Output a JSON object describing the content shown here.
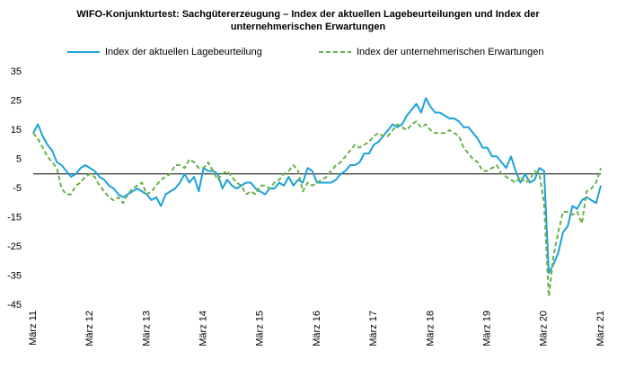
{
  "chart_data": {
    "type": "line",
    "title": "WIFO-Konjunkturtest: Sachgütererzeugung – Index der aktuellen Lagebeurteilungen und Index der",
    "subtitle": "unternehmerischen Erwartungen",
    "categories": [
      "März 11",
      null,
      null,
      null,
      null,
      null,
      null,
      null,
      null,
      null,
      null,
      null,
      "März 12",
      null,
      null,
      null,
      null,
      null,
      null,
      null,
      null,
      null,
      null,
      null,
      "März 13",
      null,
      null,
      null,
      null,
      null,
      null,
      null,
      null,
      null,
      null,
      null,
      "März 14",
      null,
      null,
      null,
      null,
      null,
      null,
      null,
      null,
      null,
      null,
      null,
      "März 15",
      null,
      null,
      null,
      null,
      null,
      null,
      null,
      null,
      null,
      null,
      null,
      "März 16",
      null,
      null,
      null,
      null,
      null,
      null,
      null,
      null,
      null,
      null,
      null,
      "März 17",
      null,
      null,
      null,
      null,
      null,
      null,
      null,
      null,
      null,
      null,
      null,
      "März 18",
      null,
      null,
      null,
      null,
      null,
      null,
      null,
      null,
      null,
      null,
      null,
      "März 19",
      null,
      null,
      null,
      null,
      null,
      null,
      null,
      null,
      null,
      null,
      null,
      "März 20",
      null,
      null,
      null,
      null,
      null,
      null,
      null,
      null,
      null,
      null,
      null,
      "März 21"
    ],
    "series": [
      {
        "name": "Index der aktuellen Lagebeurteilung",
        "color": "#1ba3d8",
        "dashed": false,
        "values": [
          14,
          17,
          13,
          10,
          8,
          4,
          3,
          1,
          -1,
          0,
          2,
          3,
          2,
          1,
          -1,
          -2,
          -4,
          -5,
          -7,
          -8,
          -7,
          -6,
          -5,
          -6,
          -7,
          -9,
          -8,
          -11,
          -7,
          -6,
          -5,
          -3,
          0,
          -3,
          -1,
          -6,
          2,
          1,
          1,
          0,
          -5,
          -2,
          -4,
          -5,
          -4,
          -3,
          -3,
          -5,
          -6,
          -7,
          -5,
          -5,
          -3,
          -4,
          -1,
          -4,
          -2,
          -3,
          2,
          1,
          -3,
          -3,
          -3,
          -3,
          -2,
          0,
          1,
          3,
          3,
          4,
          7,
          7,
          10,
          11,
          13,
          15,
          17,
          16,
          17,
          20,
          22,
          24,
          21,
          26,
          23,
          21,
          21,
          20,
          19,
          19,
          18,
          16,
          16,
          14,
          12,
          9,
          9,
          6,
          6,
          4,
          2,
          6,
          1,
          -3,
          0,
          -3,
          -2,
          2,
          1,
          -34,
          -31,
          -27,
          -20,
          -18,
          -11,
          -12,
          -9,
          -8,
          -9,
          -10,
          -4
        ]
      },
      {
        "name": "Index der unternehmerischen Erwartungen",
        "color": "#6ab04c",
        "dashed": true,
        "values": [
          14,
          12,
          9,
          6,
          4,
          2,
          -5,
          -7,
          -7,
          -4,
          -3,
          -1,
          0,
          -1,
          -4,
          -6,
          -8,
          -9,
          -8,
          -10,
          -7,
          -5,
          -4,
          -3,
          -7,
          -6,
          -4,
          -2,
          -1,
          0,
          3,
          3,
          2,
          5,
          4,
          2,
          2,
          4,
          1,
          -2,
          0,
          1,
          -1,
          -3,
          -4,
          -7,
          -6,
          -7,
          -4,
          -4,
          -5,
          -3,
          -2,
          0,
          1,
          3,
          1,
          -6,
          -3,
          -4,
          -3,
          -2,
          -1,
          1,
          3,
          4,
          6,
          8,
          10,
          9,
          10,
          11,
          13,
          14,
          13,
          13,
          15,
          17,
          16,
          15,
          17,
          18,
          16,
          17,
          15,
          14,
          14,
          14,
          15,
          14,
          13,
          9,
          7,
          5,
          4,
          1,
          1,
          2,
          3,
          0,
          -1,
          -2,
          -3,
          -1,
          -3,
          -2,
          1,
          0,
          -10,
          -42,
          -28,
          -20,
          -13,
          -13,
          -14,
          -13,
          -17,
          -6,
          -5,
          -3,
          2
        ]
      }
    ],
    "ylim": [
      -45,
      35
    ],
    "yticks": [
      -45,
      -35,
      -25,
      -15,
      -5,
      5,
      15,
      25,
      35
    ],
    "zero_line": true,
    "grid": false
  }
}
